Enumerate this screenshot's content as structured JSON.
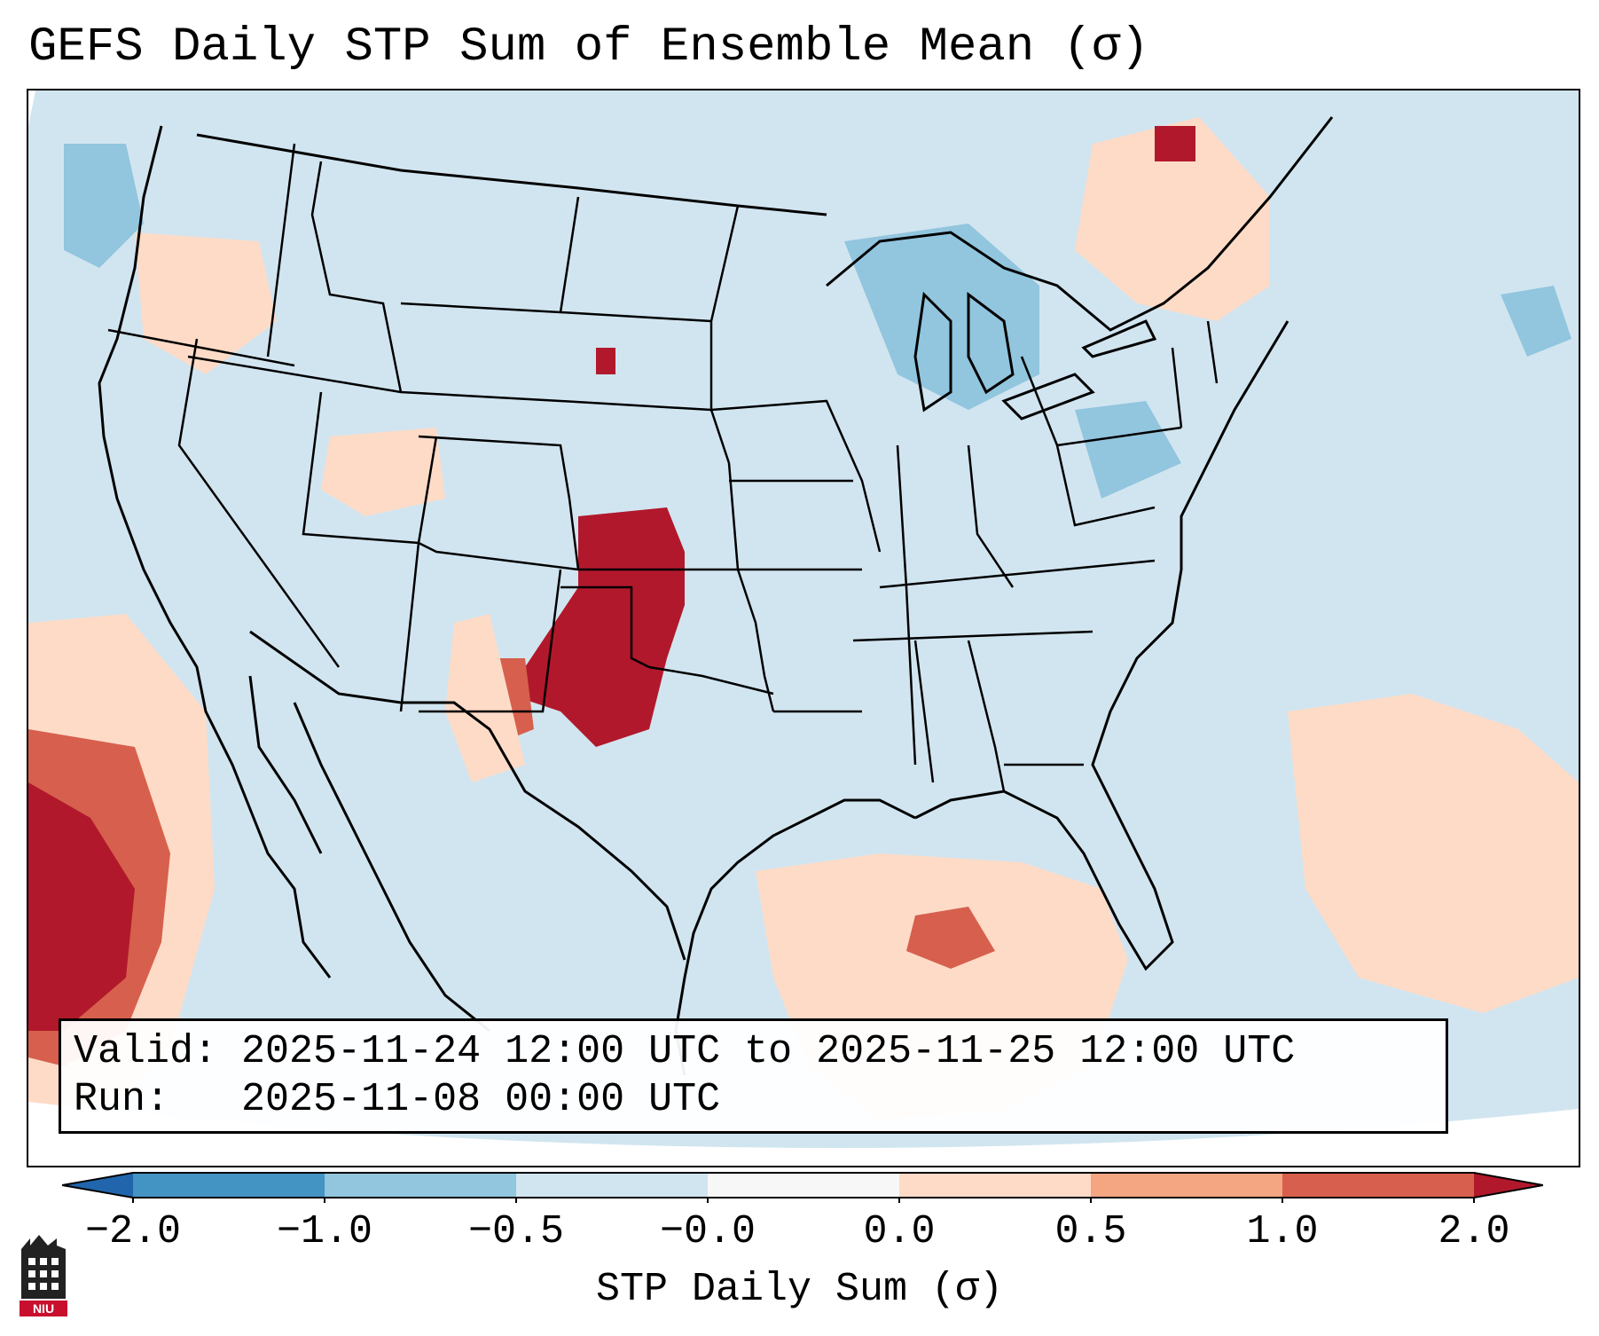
{
  "title": "GEFS Daily STP Sum of Ensemble Mean (σ)",
  "info_box": {
    "valid_label": "Valid:",
    "valid_value": "2025-11-24 12:00 UTC to 2025-11-25 12:00 UTC",
    "run_label": "Run:  ",
    "run_value": "2025-11-08 00:00 UTC"
  },
  "colorbar": {
    "label": "STP Daily Sum (σ)",
    "ticks": [
      "−2.0",
      "−1.0",
      "−0.5",
      "−0.0",
      "0.0",
      "0.5",
      "1.0",
      "2.0"
    ],
    "colors": {
      "under": "#2166ac",
      "bin_-2.0_-1.0": "#4393c3",
      "bin_-1.0_-0.5": "#92c5de",
      "bin_-0.5_-0.0": "#d1e5f0",
      "bin_-0.0_0.0": "#f7f7f7",
      "bin_0.0_0.5": "#fddbc7",
      "bin_0.5_1.0": "#f4a582",
      "bin_1.0_2.0": "#d6604d",
      "over": "#b2182b"
    },
    "extend": "both"
  },
  "map": {
    "projection": "conic",
    "region": "CONUS",
    "background_fill": "#d1e5f0"
  },
  "logo": {
    "name": "niu-logo",
    "text": "NIU"
  }
}
